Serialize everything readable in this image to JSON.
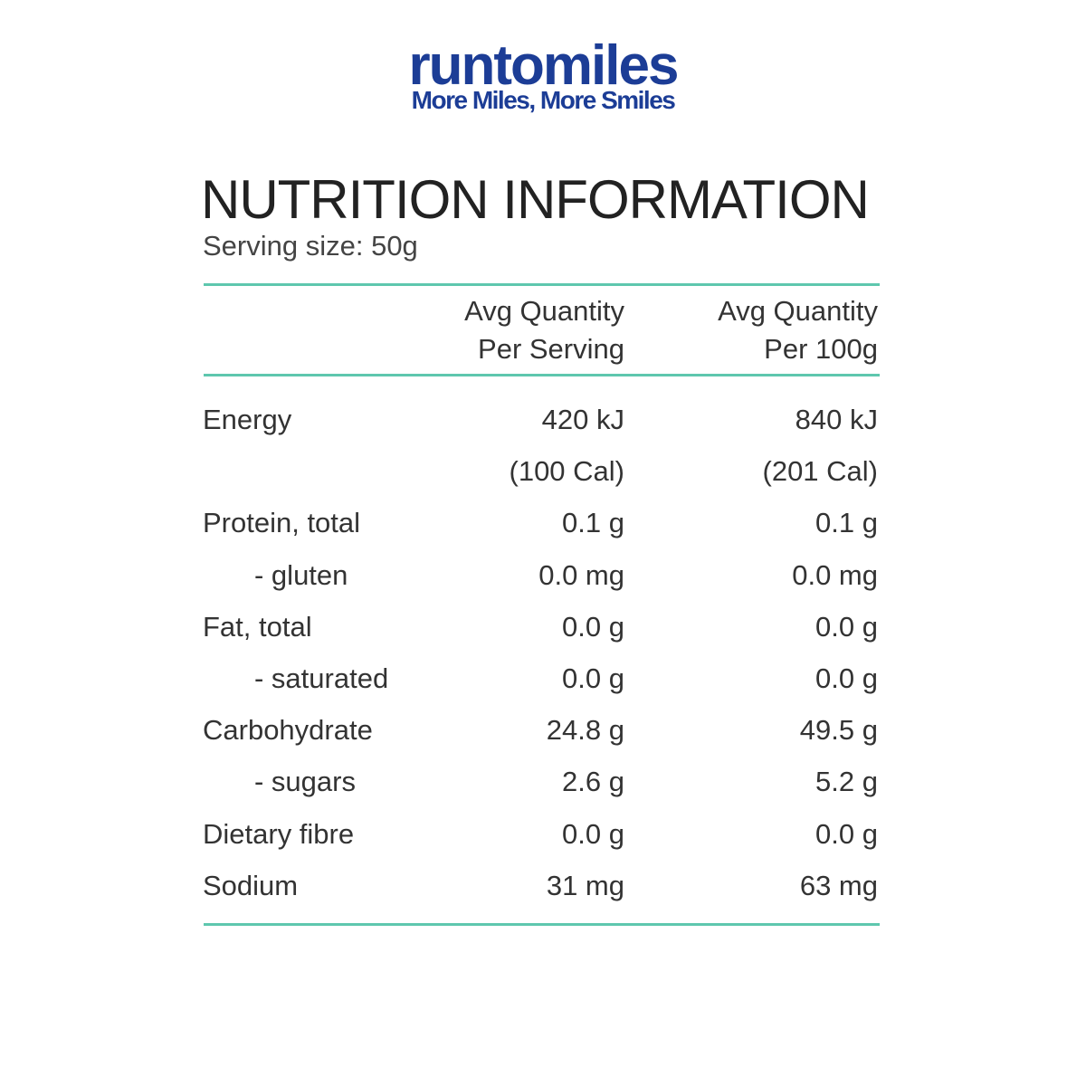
{
  "header": {
    "logo": "runtomiles",
    "tagline": "More Miles, More Smiles"
  },
  "title": "NUTRITION INFORMATION",
  "serving_size": "Serving size: 50g",
  "table": {
    "columns": [
      [
        "Avg Quantity",
        "Per Serving"
      ],
      [
        "Avg Quantity",
        "Per 100g"
      ]
    ],
    "rows": [
      [
        "Energy",
        "420 kJ",
        "840 kJ"
      ],
      [
        null,
        "(100 Cal)",
        "(201 Cal)"
      ],
      [
        "Protein, total",
        "0.1 g",
        "0.1 g"
      ],
      [
        "- gluten",
        "0.0 mg",
        "0.0 mg"
      ],
      [
        "Fat, total",
        "0.0 g",
        "0.0 g"
      ],
      [
        "- saturated",
        "0.0 g",
        "0.0 g"
      ],
      [
        "Carbohydrate",
        "24.8 g",
        "49.5 g"
      ],
      [
        "- sugars",
        "2.6 g",
        "5.2 g"
      ],
      [
        "Dietary fibre",
        "0.0 g",
        "0.0 g"
      ],
      [
        "Sodium",
        "31 mg",
        "63 mg"
      ]
    ]
  }
}
